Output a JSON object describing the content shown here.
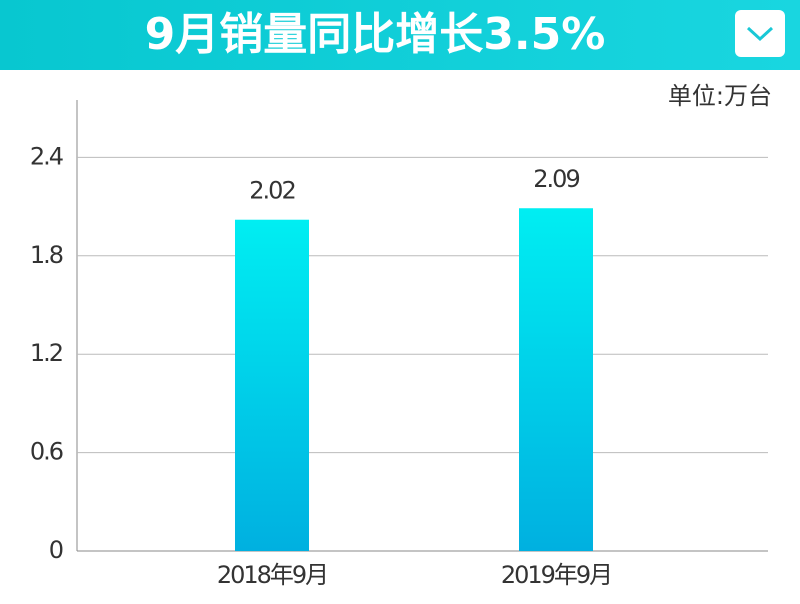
{
  "chart_data": {
    "type": "bar",
    "title": "9月销量同比增长3.5%",
    "unit_label": "单位:万台",
    "categories": [
      "2018年9月",
      "2019年9月"
    ],
    "values": [
      2.02,
      2.09
    ],
    "gradient": [
      "#00eef2",
      "#00b0e0"
    ],
    "ylim": [
      0,
      2.75
    ],
    "yticks": [
      0,
      0.6,
      1.2,
      1.8,
      2.4
    ],
    "grid": true
  }
}
